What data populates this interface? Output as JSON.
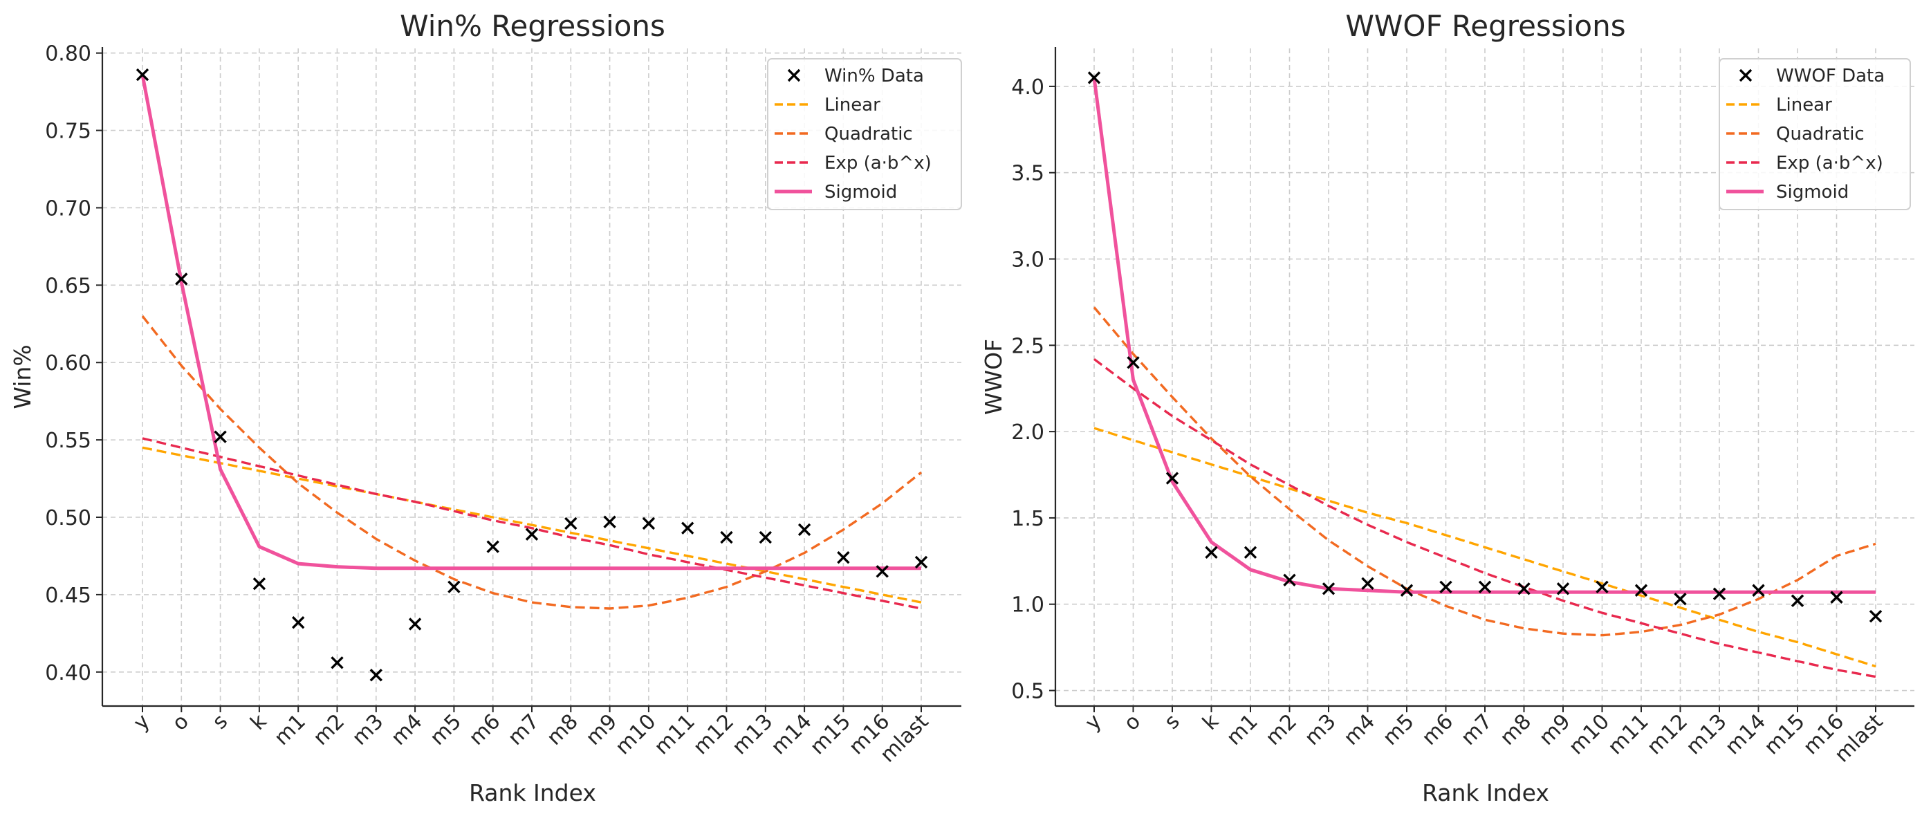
{
  "chart_data": [
    {
      "type": "line",
      "title": "Win% Regressions",
      "xlabel": "Rank Index",
      "ylabel": "Win%",
      "categories": [
        "y",
        "o",
        "s",
        "k",
        "m1",
        "m2",
        "m3",
        "m4",
        "m5",
        "m6",
        "m7",
        "m8",
        "m9",
        "m10",
        "m11",
        "m12",
        "m13",
        "m14",
        "m15",
        "m16",
        "mlast"
      ],
      "ylim": [
        0.378,
        0.803
      ],
      "yticks": [
        0.4,
        0.45,
        0.5,
        0.55,
        0.6,
        0.65,
        0.7,
        0.75,
        0.8
      ],
      "ytick_labels": [
        "0.40",
        "0.45",
        "0.50",
        "0.55",
        "0.60",
        "0.65",
        "0.70",
        "0.75",
        "0.80"
      ],
      "grid": true,
      "legend_position": "top-right",
      "series": [
        {
          "name": "Win% Data",
          "kind": "scatter",
          "color": "#000000",
          "values": [
            0.786,
            0.654,
            0.552,
            0.457,
            0.432,
            0.406,
            0.398,
            0.431,
            0.455,
            0.481,
            0.489,
            0.496,
            0.497,
            0.496,
            0.493,
            0.487,
            0.487,
            0.492,
            0.474,
            0.465,
            0.471
          ]
        },
        {
          "name": "Linear",
          "kind": "line",
          "dash": "dashed",
          "color": "#ffa500",
          "values": [
            0.545,
            0.54,
            0.535,
            0.53,
            0.525,
            0.52,
            0.515,
            0.51,
            0.505,
            0.5,
            0.495,
            0.49,
            0.485,
            0.48,
            0.475,
            0.47,
            0.465,
            0.46,
            0.455,
            0.45,
            0.445
          ]
        },
        {
          "name": "Quadratic",
          "kind": "line",
          "dash": "dashed",
          "color": "#f26a21",
          "values": [
            0.63,
            0.598,
            0.57,
            0.545,
            0.522,
            0.503,
            0.486,
            0.472,
            0.46,
            0.451,
            0.445,
            0.442,
            0.441,
            0.443,
            0.448,
            0.455,
            0.465,
            0.477,
            0.492,
            0.509,
            0.529
          ]
        },
        {
          "name": "Exp (a·b^x)",
          "kind": "line",
          "dash": "dashed",
          "color": "#e8294e",
          "values": [
            0.551,
            0.545,
            0.539,
            0.533,
            0.527,
            0.521,
            0.515,
            0.51,
            0.504,
            0.498,
            0.493,
            0.487,
            0.482,
            0.476,
            0.471,
            0.466,
            0.461,
            0.456,
            0.451,
            0.446,
            0.441
          ]
        },
        {
          "name": "Sigmoid",
          "kind": "line",
          "dash": "solid",
          "color": "#f0529c",
          "values": [
            0.786,
            0.652,
            0.531,
            0.481,
            0.47,
            0.468,
            0.467,
            0.467,
            0.467,
            0.467,
            0.467,
            0.467,
            0.467,
            0.467,
            0.467,
            0.467,
            0.467,
            0.467,
            0.467,
            0.467,
            0.467
          ]
        }
      ]
    },
    {
      "type": "line",
      "title": "WWOF Regressions",
      "xlabel": "Rank Index",
      "ylabel": "WWOF",
      "categories": [
        "y",
        "o",
        "s",
        "k",
        "m1",
        "m2",
        "m3",
        "m4",
        "m5",
        "m6",
        "m7",
        "m8",
        "m9",
        "m10",
        "m11",
        "m12",
        "m13",
        "m14",
        "m15",
        "m16",
        "mlast"
      ],
      "ylim": [
        0.41,
        4.22
      ],
      "yticks": [
        0.5,
        1.0,
        1.5,
        2.0,
        2.5,
        3.0,
        3.5,
        4.0
      ],
      "ytick_labels": [
        "0.5",
        "1.0",
        "1.5",
        "2.0",
        "2.5",
        "3.0",
        "3.5",
        "4.0"
      ],
      "grid": true,
      "legend_position": "top-right",
      "series": [
        {
          "name": "WWOF Data",
          "kind": "scatter",
          "color": "#000000",
          "values": [
            4.05,
            2.4,
            1.73,
            1.3,
            1.3,
            1.14,
            1.09,
            1.12,
            1.08,
            1.1,
            1.1,
            1.09,
            1.09,
            1.1,
            1.08,
            1.03,
            1.06,
            1.08,
            1.02,
            1.04,
            0.93
          ]
        },
        {
          "name": "Linear",
          "kind": "line",
          "dash": "dashed",
          "color": "#ffa500",
          "values": [
            2.02,
            1.95,
            1.88,
            1.81,
            1.74,
            1.67,
            1.6,
            1.53,
            1.47,
            1.4,
            1.33,
            1.26,
            1.19,
            1.12,
            1.05,
            0.98,
            0.91,
            0.84,
            0.78,
            0.71,
            0.64
          ]
        },
        {
          "name": "Quadratic",
          "kind": "line",
          "dash": "dashed",
          "color": "#f26a21",
          "values": [
            2.72,
            2.45,
            2.2,
            1.96,
            1.74,
            1.55,
            1.37,
            1.22,
            1.09,
            0.99,
            0.91,
            0.86,
            0.83,
            0.82,
            0.84,
            0.88,
            0.94,
            1.03,
            1.14,
            1.28,
            1.35
          ]
        },
        {
          "name": "Exp (a·b^x)",
          "kind": "line",
          "dash": "dashed",
          "color": "#e8294e",
          "values": [
            2.42,
            2.25,
            2.09,
            1.95,
            1.81,
            1.69,
            1.57,
            1.46,
            1.36,
            1.27,
            1.18,
            1.1,
            1.02,
            0.95,
            0.89,
            0.83,
            0.77,
            0.72,
            0.67,
            0.62,
            0.58
          ]
        },
        {
          "name": "Sigmoid",
          "kind": "line",
          "dash": "solid",
          "color": "#f0529c",
          "values": [
            4.05,
            2.3,
            1.71,
            1.36,
            1.2,
            1.13,
            1.09,
            1.08,
            1.07,
            1.07,
            1.07,
            1.07,
            1.07,
            1.07,
            1.07,
            1.07,
            1.07,
            1.07,
            1.07,
            1.07,
            1.07
          ]
        }
      ]
    }
  ]
}
